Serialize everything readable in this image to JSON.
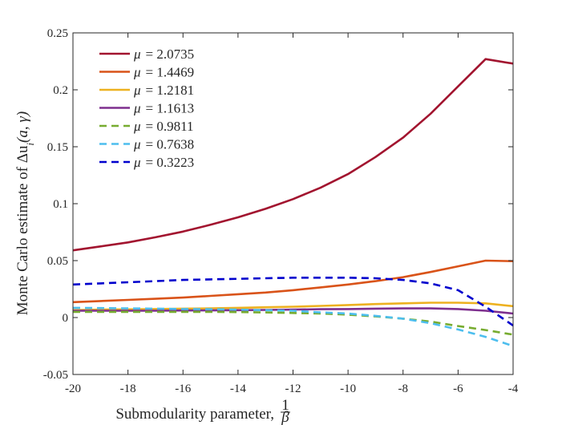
{
  "chart_data": {
    "type": "line",
    "title": "",
    "xlabel": "Submodularity parameter,",
    "xlabel_math": "1/β",
    "xlabel_num": "1",
    "xlabel_den": "β",
    "ylabel": "Monte Carlo estimate of Δu",
    "ylabel_sub": "i",
    "ylabel_args": "(a, γ)",
    "xlim": [
      -20,
      -4
    ],
    "ylim": [
      -0.05,
      0.25
    ],
    "xticks": [
      -20,
      -18,
      -16,
      -14,
      -12,
      -10,
      -8,
      -6,
      -4
    ],
    "xtick_labels": [
      "-20",
      "-18",
      "-16",
      "-14",
      "-12",
      "-10",
      "-8",
      "-6",
      "-4"
    ],
    "yticks": [
      -0.05,
      0,
      0.05,
      0.1,
      0.15,
      0.2,
      0.25
    ],
    "ytick_labels": [
      "-0.05",
      "0",
      "0.05",
      "0.1",
      "0.15",
      "0.2",
      "0.25"
    ],
    "legend_position": "top-left",
    "x": [
      -20,
      -19,
      -18,
      -17,
      -16,
      -15,
      -14,
      -13,
      -12,
      -11,
      -10,
      -9,
      -8,
      -7,
      -6,
      -5,
      -4
    ],
    "series": [
      {
        "name": "μ = 2.0735",
        "legend_symbol": "μ",
        "legend_value": "= 2.0735",
        "color": "#a2142f",
        "dash": "solid",
        "values": [
          0.059,
          0.0625,
          0.066,
          0.0705,
          0.0755,
          0.0815,
          0.088,
          0.0955,
          0.104,
          0.114,
          0.126,
          0.141,
          0.158,
          0.179,
          0.203,
          0.227,
          0.223
        ]
      },
      {
        "name": "μ = 1.4469",
        "legend_symbol": "μ",
        "legend_value": "= 1.4469",
        "color": "#d95319",
        "dash": "solid",
        "values": [
          0.0135,
          0.0145,
          0.0155,
          0.0165,
          0.0175,
          0.019,
          0.0205,
          0.022,
          0.024,
          0.0265,
          0.029,
          0.032,
          0.0355,
          0.04,
          0.045,
          0.05,
          0.0495
        ]
      },
      {
        "name": "μ = 1.2181",
        "legend_symbol": "μ",
        "legend_value": "= 1.2181",
        "color": "#edb120",
        "dash": "solid",
        "values": [
          0.0065,
          0.007,
          0.0072,
          0.0075,
          0.0078,
          0.008,
          0.0085,
          0.009,
          0.0095,
          0.0102,
          0.011,
          0.0118,
          0.0125,
          0.013,
          0.013,
          0.0125,
          0.01
        ]
      },
      {
        "name": "μ = 1.1613",
        "legend_symbol": "μ",
        "legend_value": "= 1.1613",
        "color": "#7e2f8e",
        "dash": "solid",
        "values": [
          0.006,
          0.006,
          0.006,
          0.006,
          0.0062,
          0.0063,
          0.0065,
          0.0067,
          0.007,
          0.0073,
          0.0075,
          0.0078,
          0.008,
          0.008,
          0.0075,
          0.006,
          0.0035
        ]
      },
      {
        "name": "μ = 0.9811",
        "legend_symbol": "μ",
        "legend_value": "= 0.9811",
        "color": "#77ac30",
        "dash": "dashed",
        "values": [
          0.005,
          0.005,
          0.005,
          0.005,
          0.005,
          0.005,
          0.0048,
          0.0045,
          0.004,
          0.0035,
          0.0025,
          0.001,
          -0.001,
          -0.0035,
          -0.0075,
          -0.011,
          -0.015
        ]
      },
      {
        "name": "μ = 0.7638",
        "legend_symbol": "μ",
        "legend_value": "= 0.7638",
        "color": "#4dbeee",
        "dash": "dashed",
        "values": [
          0.0085,
          0.0083,
          0.008,
          0.0078,
          0.0075,
          0.0073,
          0.007,
          0.0065,
          0.006,
          0.0045,
          0.0035,
          0.0015,
          -0.001,
          -0.005,
          -0.0105,
          -0.017,
          -0.025
        ]
      },
      {
        "name": "μ = 0.3223",
        "legend_symbol": "μ",
        "legend_value": "= 0.3223",
        "color": "#0000cd",
        "dash": "dashed",
        "values": [
          0.029,
          0.03,
          0.031,
          0.032,
          0.033,
          0.0335,
          0.034,
          0.0345,
          0.035,
          0.035,
          0.035,
          0.0345,
          0.033,
          0.03,
          0.024,
          0.0095,
          -0.007
        ]
      }
    ]
  }
}
